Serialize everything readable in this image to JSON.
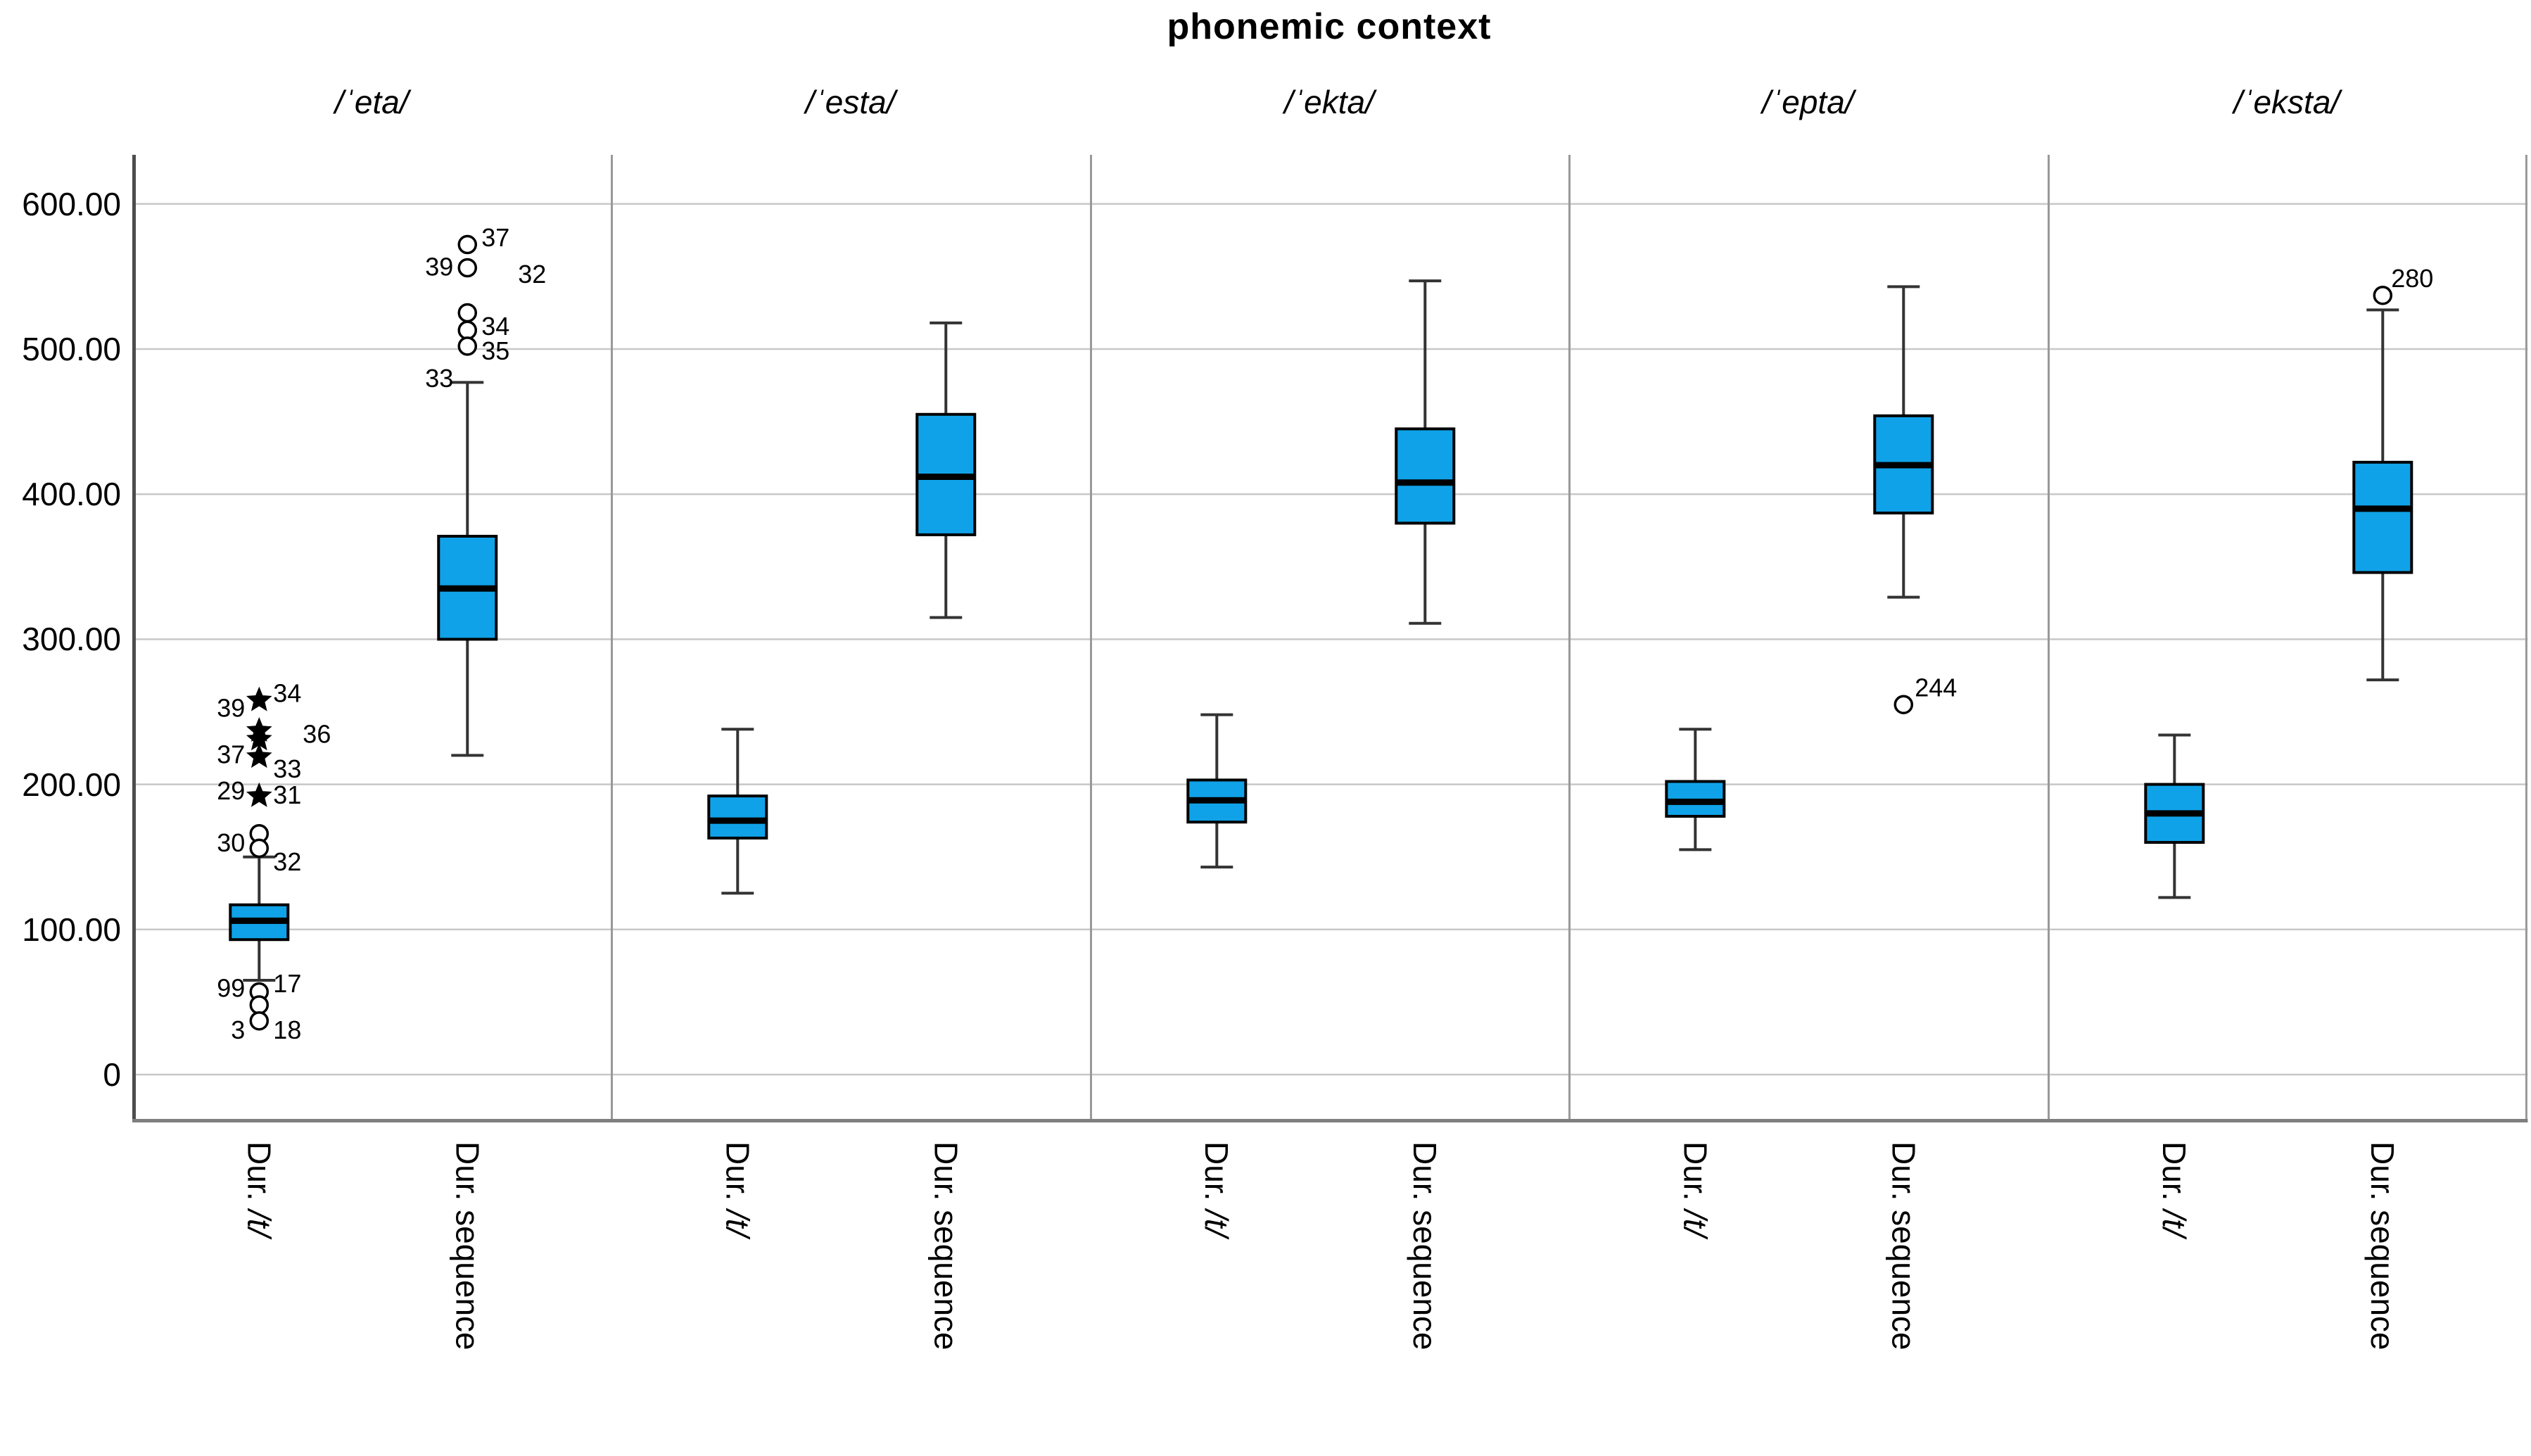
{
  "title": "phonemic context",
  "colors": {
    "background": "#FFFFFF",
    "box_fill": "#10A2E8",
    "box_border": "#000000",
    "median": "#000000",
    "whisker": "#333333",
    "gridline": "#C8C8C8",
    "axis": "#4D4D4D",
    "separator": "#999999",
    "bottom_border": "#7F7F7F",
    "text": "#000000"
  },
  "chart_data": {
    "type": "boxplot",
    "title": "phonemic context",
    "ylabel": "",
    "ylim": [
      0,
      650
    ],
    "grid": "horizontal",
    "y_ticks": [
      {
        "v": 600,
        "t": "600.00"
      },
      {
        "v": 500,
        "t": "500.00"
      },
      {
        "v": 400,
        "t": "400.00"
      },
      {
        "v": 300,
        "t": "300.00"
      },
      {
        "v": 200,
        "t": "200.00"
      },
      {
        "v": 100,
        "t": "100.00"
      },
      {
        "v": 0,
        "t": "0"
      }
    ],
    "panels": [
      {
        "phoneme": "/ˈeta/",
        "boxes": [
          {
            "cat": [
              [
                "Dur. ",
                0
              ],
              [
                "/t/",
                1
              ]
            ],
            "pos": 0.265,
            "wlo": 65,
            "q1": 93,
            "med": 106,
            "q3": 117,
            "whi": 150,
            "markers": [
              [
                258,
                "s"
              ],
              [
                237,
                "s"
              ],
              [
                231,
                "s"
              ],
              [
                219,
                "s"
              ],
              [
                192,
                "s"
              ],
              [
                166,
                "c"
              ],
              [
                156,
                "c"
              ],
              [
                57,
                "c"
              ],
              [
                48,
                "c"
              ],
              [
                37,
                "c"
              ]
            ],
            "labels": [
              [
                "34",
                263,
                "r"
              ],
              [
                "39",
                253,
                "l"
              ],
              [
                "36",
                235,
                "r",
                62
              ],
              [
                "37",
                221,
                "l"
              ],
              [
                "33",
                211,
                "r"
              ],
              [
                "31",
                193,
                "r"
              ],
              [
                "29",
                196,
                "l"
              ],
              [
                "30",
                160,
                "l"
              ],
              [
                "32",
                147,
                "r"
              ],
              [
                "17",
                63,
                "r"
              ],
              [
                "99",
                60,
                "l"
              ],
              [
                "3",
                31,
                "l"
              ],
              [
                "18",
                31,
                "r"
              ]
            ]
          },
          {
            "cat": [
              [
                "Dur. sequence",
                0
              ]
            ],
            "pos": 0.7,
            "wlo": 220,
            "q1": 300,
            "med": 335,
            "q3": 371,
            "whi": 477,
            "markers": [
              [
                572,
                "c"
              ],
              [
                556,
                "c"
              ],
              [
                525,
                "c"
              ],
              [
                513,
                "c"
              ],
              [
                502,
                "c"
              ]
            ],
            "labels": [
              [
                "37",
                577,
                "r"
              ],
              [
                "39",
                557,
                "l"
              ],
              [
                "32",
                552,
                "r",
                72
              ],
              [
                "34",
                516,
                "r"
              ],
              [
                "35",
                499,
                "r"
              ],
              [
                "33",
                480,
                "l"
              ]
            ]
          }
        ]
      },
      {
        "phoneme": "/ˈesta/",
        "boxes": [
          {
            "cat": [
              [
                "Dur. ",
                0
              ],
              [
                "/t/",
                1
              ]
            ],
            "pos": 0.265,
            "wlo": 125,
            "q1": 163,
            "med": 175,
            "q3": 192,
            "whi": 238,
            "markers": [],
            "labels": []
          },
          {
            "cat": [
              [
                "Dur. sequence",
                0
              ]
            ],
            "pos": 0.7,
            "wlo": 315,
            "q1": 372,
            "med": 412,
            "q3": 455,
            "whi": 518,
            "markers": [],
            "labels": []
          }
        ]
      },
      {
        "phoneme": "/ˈekta/",
        "boxes": [
          {
            "cat": [
              [
                "Dur. ",
                0
              ],
              [
                "/t/",
                1
              ]
            ],
            "pos": 0.265,
            "wlo": 143,
            "q1": 174,
            "med": 189,
            "q3": 203,
            "whi": 248,
            "markers": [],
            "labels": []
          },
          {
            "cat": [
              [
                "Dur. sequence",
                0
              ]
            ],
            "pos": 0.7,
            "wlo": 311,
            "q1": 380,
            "med": 408,
            "q3": 445,
            "whi": 547,
            "markers": [],
            "labels": []
          }
        ]
      },
      {
        "phoneme": "/ˈepta/",
        "boxes": [
          {
            "cat": [
              [
                "Dur. ",
                0
              ],
              [
                "/t/",
                1
              ]
            ],
            "pos": 0.265,
            "wlo": 155,
            "q1": 178,
            "med": 188,
            "q3": 202,
            "whi": 238,
            "markers": [],
            "labels": []
          },
          {
            "cat": [
              [
                "Dur. sequence",
                0
              ]
            ],
            "pos": 0.7,
            "wlo": 329,
            "q1": 387,
            "med": 420,
            "q3": 454,
            "whi": 543,
            "markers": [
              [
                255,
                "c"
              ]
            ],
            "labels": [
              [
                "244",
                267,
                "r",
                16
              ]
            ]
          }
        ]
      },
      {
        "phoneme": "/ˈeksta/",
        "boxes": [
          {
            "cat": [
              [
                "Dur. ",
                0
              ],
              [
                "/t/",
                1
              ]
            ],
            "pos": 0.265,
            "wlo": 122,
            "q1": 160,
            "med": 180,
            "q3": 200,
            "whi": 234,
            "markers": [],
            "labels": []
          },
          {
            "cat": [
              [
                "Dur. sequence",
                0
              ]
            ],
            "pos": 0.7,
            "wlo": 272,
            "q1": 346,
            "med": 390,
            "q3": 422,
            "whi": 527,
            "markers": [
              [
                537,
                "c"
              ]
            ],
            "labels": [
              [
                "280",
                549,
                "r",
                12
              ]
            ]
          }
        ]
      }
    ]
  }
}
